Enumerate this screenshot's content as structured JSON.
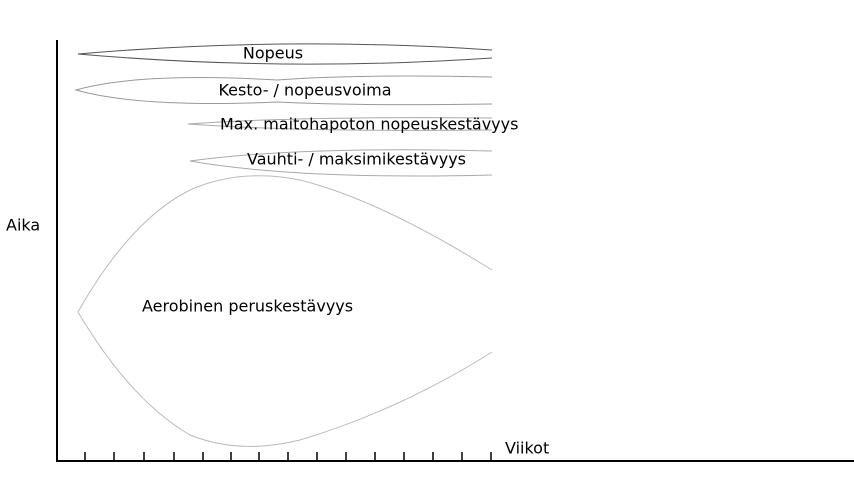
{
  "axes": {
    "y_label": "Aika",
    "x_label": "Viikot"
  },
  "shapes": [
    {
      "label": "Nopeus"
    },
    {
      "label": "Kesto- / nopeusvoima"
    },
    {
      "label": "Max. maitohapoton nopeuskestävyys"
    },
    {
      "label": "Vauhti- / maksimikestävyys"
    },
    {
      "label": "Aerobinen peruskestävyys"
    }
  ]
}
